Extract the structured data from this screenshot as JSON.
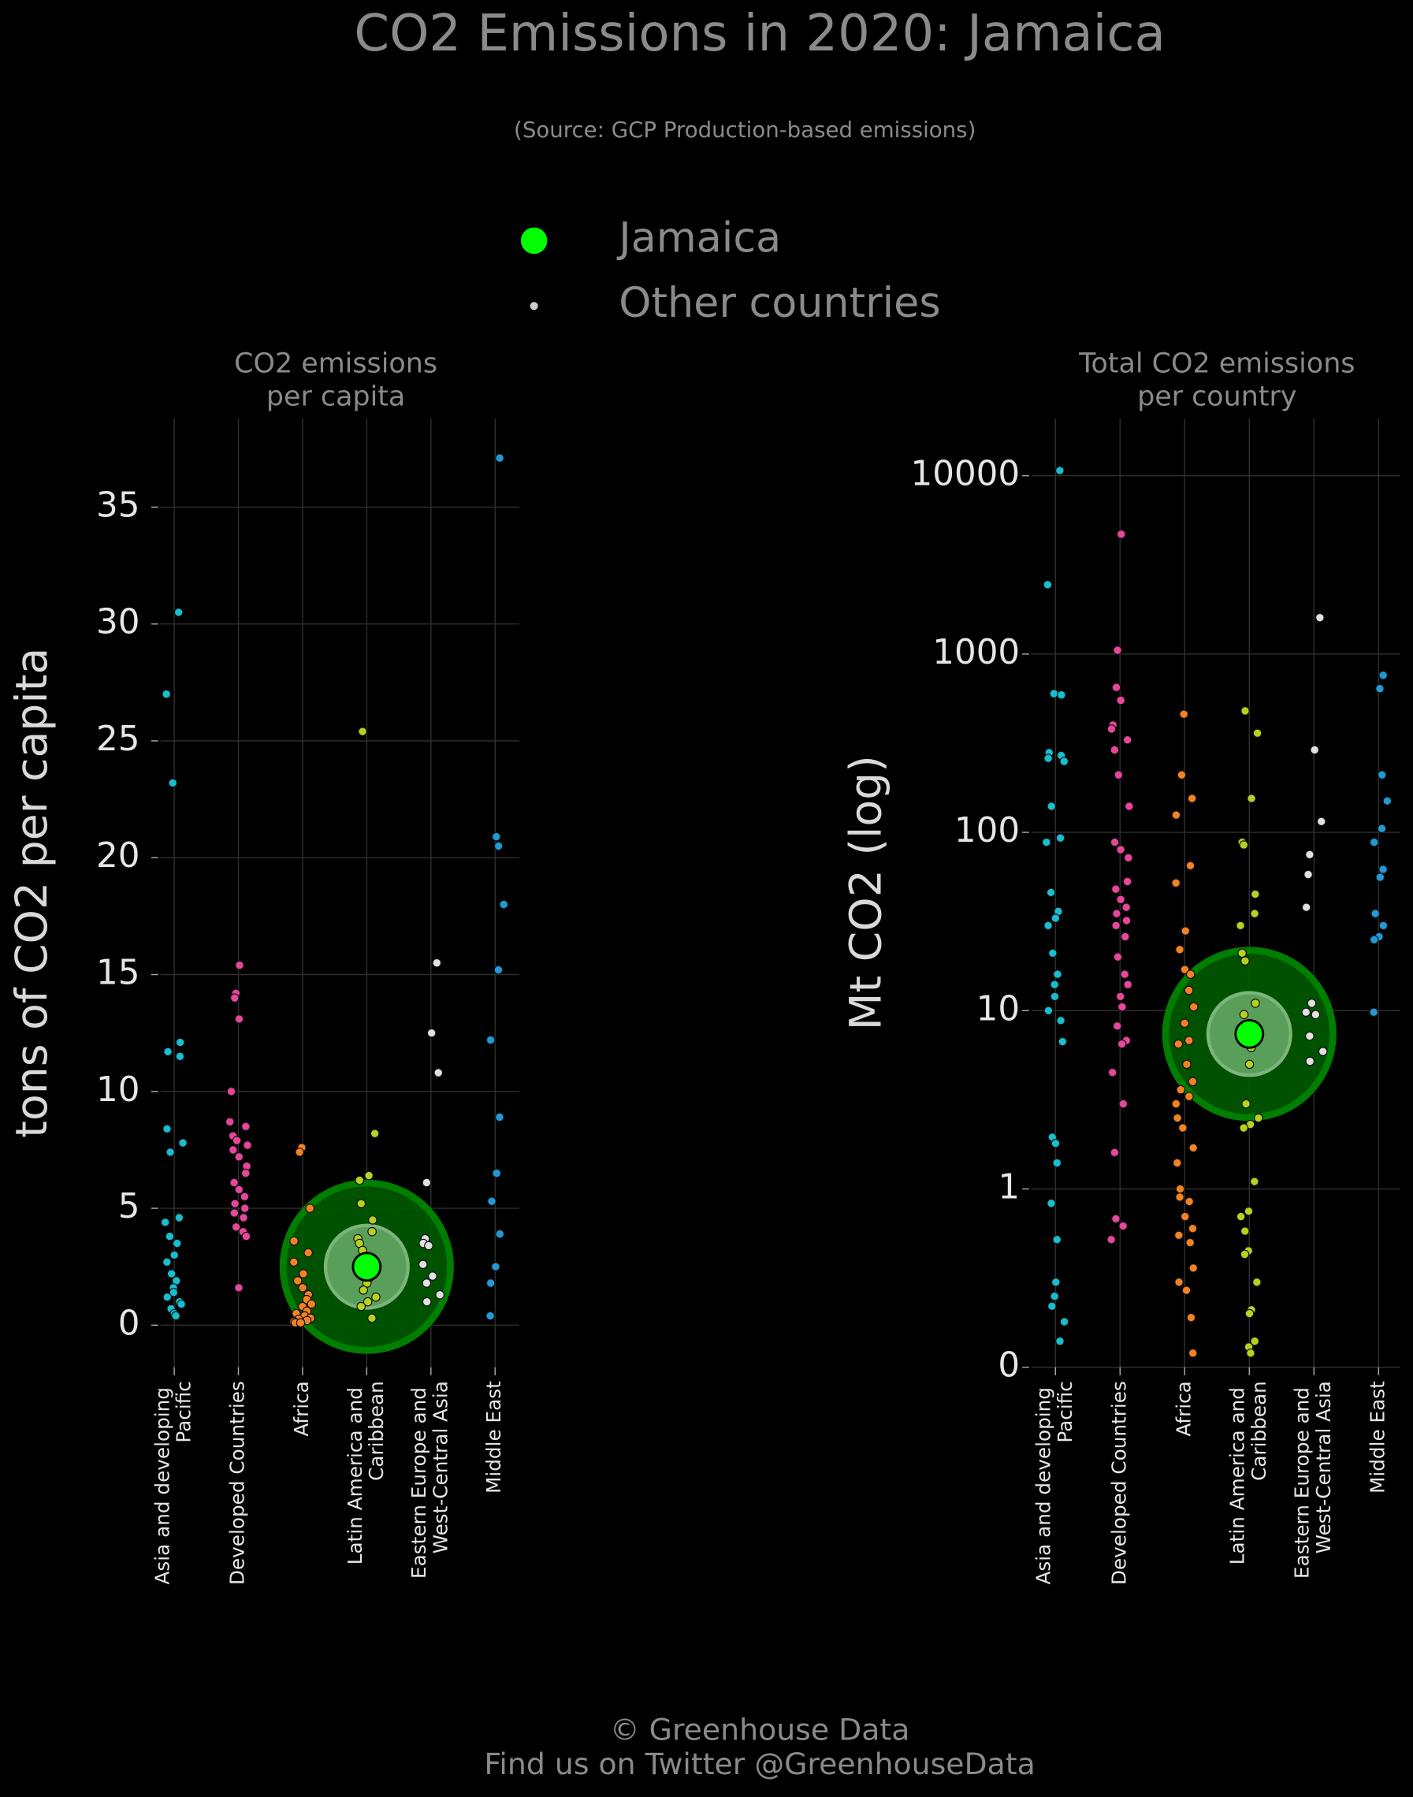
{
  "title": "CO2 Emissions in 2020: Jamaica",
  "subtitle": "(Source: GCP Production-based emissions)",
  "legend": [
    {
      "name": "Jamaica",
      "color": "#00ff00"
    },
    {
      "name": "Other countries",
      "color": "#cccccc"
    }
  ],
  "footer": [
    "© Greenhouse Data",
    "Find us on Twitter @GreenhouseData"
  ],
  "chart_data": [
    {
      "type": "strip",
      "title": [
        "CO2 emissions",
        "per capita"
      ],
      "y_label": "tons of CO2 per capita",
      "categories": [
        "Asia and developing Pacific",
        "Developed Countries",
        "Africa",
        "Latin America and Caribbean",
        "Eastern Europe and West-Central Asia",
        "Middle East"
      ],
      "colors": [
        "#17becf",
        "#e7469a",
        "#f58220",
        "#b5d21f",
        "#e0e0e0",
        "#1f9ad6"
      ],
      "values": [
        [
          30.5,
          27,
          23.2,
          12.1,
          11.7,
          11.5,
          8.4,
          7.8,
          7.4,
          4.6,
          4.4,
          3.8,
          3.5,
          3.0,
          2.7,
          2.2,
          1.9,
          1.6,
          1.4,
          1.2,
          1.0,
          0.9,
          0.7,
          0.5,
          0.4
        ],
        [
          15.4,
          14.2,
          14.0,
          13.1,
          10.0,
          8.7,
          8.5,
          8.1,
          7.9,
          7.7,
          7.5,
          7.2,
          6.8,
          6.5,
          6.1,
          5.8,
          5.5,
          5.2,
          5.0,
          4.8,
          4.6,
          4.2,
          4.0,
          3.8,
          1.6
        ],
        [
          7.6,
          7.4,
          5.0,
          3.6,
          3.1,
          2.7,
          2.2,
          1.9,
          1.6,
          1.3,
          1.1,
          0.9,
          0.8,
          0.6,
          0.5,
          0.4,
          0.3,
          0.25,
          0.2,
          0.15,
          0.1,
          0.1
        ],
        [
          25.4,
          8.2,
          6.4,
          6.2,
          5.2,
          4.5,
          4.0,
          3.7,
          3.5,
          3.2,
          2.8,
          2.5,
          2.3,
          2.0,
          1.8,
          1.5,
          1.2,
          1.0,
          0.8,
          0.3
        ],
        [
          15.5,
          12.5,
          10.8,
          6.1,
          3.7,
          3.5,
          3.4,
          2.6,
          2.1,
          1.8,
          1.3,
          1.0
        ],
        [
          37.1,
          20.9,
          20.5,
          18.0,
          15.2,
          12.2,
          8.9,
          6.5,
          5.3,
          3.9,
          2.5,
          1.8,
          0.4
        ]
      ],
      "highlight": {
        "category": "Latin America and Caribbean",
        "value": 2.5,
        "color": "#00ff00"
      },
      "ylim": [
        -1.8,
        38.8
      ],
      "yticks": [
        0,
        5,
        10,
        15,
        20,
        25,
        30,
        35
      ],
      "log": false,
      "grid": true
    },
    {
      "type": "strip",
      "title": [
        "Total CO2 emissions",
        "per country"
      ],
      "y_label": "Mt CO2 (log)",
      "categories": [
        "Asia and developing Pacific",
        "Developed Countries",
        "Africa",
        "Latin America and Caribbean",
        "Eastern Europe and West-Central Asia",
        "Middle East"
      ],
      "colors": [
        "#17becf",
        "#e7469a",
        "#f58220",
        "#b5d21f",
        "#e0e0e0",
        "#1f9ad6"
      ],
      "values": [
        [
          10700,
          2450,
          600,
          590,
          280,
          270,
          260,
          250,
          140,
          93,
          88,
          46,
          36,
          33,
          30,
          21,
          16,
          14,
          12,
          10,
          8.8,
          6.7,
          1.95,
          1.8,
          1.4,
          0.83,
          0.52,
          0.3,
          0.25,
          0.22,
          0.18,
          0.14
        ],
        [
          4700,
          1050,
          650,
          550,
          400,
          380,
          330,
          290,
          210,
          140,
          88,
          80,
          72,
          53,
          48,
          42,
          38,
          35,
          32,
          30,
          26,
          20,
          16,
          14,
          12,
          10.5,
          8.2,
          6.8,
          6.5,
          4.5,
          3.0,
          1.6,
          0.68,
          0.62,
          0.52
        ],
        [
          460,
          210,
          155,
          125,
          65,
          52,
          28,
          22,
          17,
          16,
          13,
          10.5,
          8.5,
          6.8,
          6.5,
          5,
          4,
          3.6,
          3.3,
          3.0,
          2.5,
          2.2,
          1.7,
          1.4,
          1.0,
          0.9,
          0.85,
          0.7,
          0.6,
          0.55,
          0.5,
          0.36,
          0.3,
          0.27,
          0.19,
          0.12
        ],
        [
          480,
          360,
          155,
          88,
          85,
          45,
          35,
          30,
          21,
          19,
          11,
          9.5,
          8,
          6.2,
          5,
          3,
          2.5,
          2.3,
          2.2,
          1.1,
          0.75,
          0.7,
          0.58,
          0.45,
          0.43,
          0.3,
          0.21,
          0.2,
          0.14,
          0.13,
          0.12
        ],
        [
          1600,
          290,
          115,
          75,
          58,
          38,
          11,
          9.8,
          9.5,
          7.2,
          5.9,
          5.2
        ],
        [
          760,
          640,
          210,
          150,
          105,
          88,
          62,
          56,
          35,
          30,
          26,
          25,
          9.8
        ]
      ],
      "highlight": {
        "category": "Latin America and Caribbean",
        "value": 7.4,
        "color": "#00ff00"
      },
      "ylim": [
        0.1,
        21000
      ],
      "yticks": [
        {
          "value": 0.1,
          "label": "0"
        },
        1,
        10,
        100,
        1000,
        10000
      ],
      "log": true,
      "grid": true
    }
  ]
}
